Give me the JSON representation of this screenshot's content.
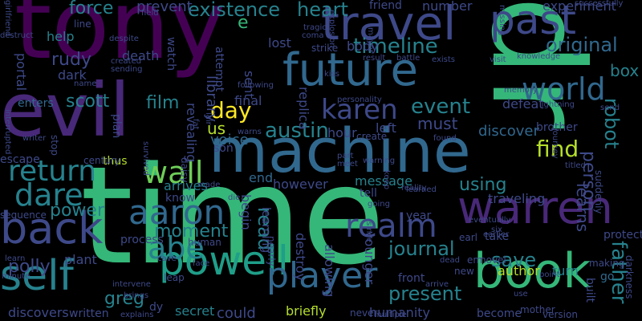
{
  "background": "#000000",
  "palette": {
    "dark_purple": "#440154",
    "purple": "#482878",
    "indigo": "#3e4989",
    "blue": "#31688e",
    "teal": "#26828e",
    "cyan_green": "#1f9e89",
    "green": "#35b779",
    "light_green": "#6ece58",
    "lime": "#b5de2b",
    "yellow": "#fde725"
  },
  "words": [
    {
      "id": "time",
      "text": "time",
      "color": "#35b779"
    },
    {
      "id": "tony",
      "text": "tony",
      "color": "#440154"
    },
    {
      "id": "dr",
      "text": "dr",
      "color": "#35b779"
    },
    {
      "id": "machine",
      "text": "machine",
      "color": "#31688e"
    },
    {
      "id": "evil",
      "text": "evil",
      "color": "#482878"
    },
    {
      "id": "future",
      "text": "future",
      "color": "#31688e"
    },
    {
      "id": "travel",
      "text": "travel",
      "color": "#3e4989"
    },
    {
      "id": "book",
      "text": "book",
      "color": "#35b779"
    },
    {
      "id": "warren",
      "text": "warren",
      "color": "#482878"
    },
    {
      "id": "self",
      "text": "self",
      "color": "#26828e"
    },
    {
      "id": "back",
      "text": "back",
      "color": "#3e4989"
    },
    {
      "id": "past",
      "text": "past",
      "color": "#3e4989"
    },
    {
      "id": "powell",
      "text": "powell",
      "color": "#1f9e89"
    },
    {
      "id": "player",
      "text": "player",
      "color": "#31688e"
    },
    {
      "id": "aaron",
      "text": "aaron",
      "color": "#31688e"
    },
    {
      "id": "world",
      "text": "world",
      "color": "#31688e"
    },
    {
      "id": "realm",
      "text": "realm",
      "color": "#3e4989"
    },
    {
      "id": "abe",
      "text": "abe",
      "color": "#26828e"
    },
    {
      "id": "return",
      "text": "return",
      "color": "#26828e"
    },
    {
      "id": "wall",
      "text": "wall",
      "color": "#6ece58"
    },
    {
      "id": "karen",
      "text": "karen",
      "color": "#3e4989"
    },
    {
      "id": "dare",
      "text": "dare",
      "color": "#26828e"
    },
    {
      "id": "timeline",
      "text": "timeline",
      "color": "#26828e"
    },
    {
      "id": "austin",
      "text": "austin",
      "color": "#26828e"
    },
    {
      "id": "original",
      "text": "original",
      "color": "#31688e"
    },
    {
      "id": "existence",
      "text": "existence",
      "color": "#26828e"
    },
    {
      "id": "day",
      "text": "day",
      "color": "#fde725"
    },
    {
      "id": "find",
      "text": "find",
      "color": "#b5de2b"
    },
    {
      "id": "event",
      "text": "event",
      "color": "#26828e"
    },
    {
      "id": "heart",
      "text": "heart",
      "color": "#26828e"
    },
    {
      "id": "force",
      "text": "force",
      "color": "#26828e"
    },
    {
      "id": "read",
      "text": "read",
      "color": "#26828e"
    },
    {
      "id": "father",
      "text": "father",
      "color": "#26828e"
    },
    {
      "id": "robot",
      "text": "robot",
      "color": "#26828e"
    },
    {
      "id": "person",
      "text": "person",
      "color": "#3e4989"
    },
    {
      "id": "journal",
      "text": "journal",
      "color": "#26828e"
    },
    {
      "id": "present",
      "text": "present",
      "color": "#26828e"
    },
    {
      "id": "save",
      "text": "save",
      "color": "#26828e"
    },
    {
      "id": "greg",
      "text": "greg",
      "color": "#26828e"
    },
    {
      "id": "polly",
      "text": "polly",
      "color": "#3e4989"
    },
    {
      "id": "rudy",
      "text": "rudy",
      "color": "#3e4989"
    },
    {
      "id": "scott",
      "text": "scott",
      "color": "#26828e"
    },
    {
      "id": "film",
      "text": "film",
      "color": "#26828e"
    },
    {
      "id": "moment",
      "text": "moment",
      "color": "#26828e"
    },
    {
      "id": "power",
      "text": "power",
      "color": "#26828e"
    },
    {
      "id": "using",
      "text": "using",
      "color": "#26828e"
    },
    {
      "id": "learns",
      "text": "learns",
      "color": "#3e4989"
    },
    {
      "id": "must",
      "text": "must",
      "color": "#3e4989"
    },
    {
      "id": "box",
      "text": "box",
      "color": "#26828e"
    },
    {
      "id": "library",
      "text": "library",
      "color": "#3e4989"
    },
    {
      "id": "us",
      "text": "us",
      "color": "#b5de2b"
    },
    {
      "id": "voice",
      "text": "voice",
      "color": "#31688e"
    },
    {
      "id": "wall_e",
      "text": "e",
      "color": "#35b779"
    },
    {
      "id": "prevent",
      "text": "prevent",
      "color": "#3e4989"
    },
    {
      "id": "lost",
      "text": "lost",
      "color": "#3e4989"
    },
    {
      "id": "number",
      "text": "number",
      "color": "#3e4989"
    },
    {
      "id": "experiment",
      "text": "experiment",
      "color": "#3e4989"
    },
    {
      "id": "friend",
      "text": "friend",
      "color": "#3e4989"
    },
    {
      "id": "help",
      "text": "help",
      "color": "#26828e"
    },
    {
      "id": "portal",
      "text": "portal",
      "color": "#3e4989"
    },
    {
      "id": "dark",
      "text": "dark",
      "color": "#3e4989"
    },
    {
      "id": "death",
      "text": "death",
      "color": "#3e4989"
    },
    {
      "id": "sent",
      "text": "sent",
      "color": "#3e4989"
    },
    {
      "id": "final",
      "text": "final",
      "color": "#3e4989"
    },
    {
      "id": "body",
      "text": "body",
      "color": "#3e4989"
    },
    {
      "id": "replica",
      "text": "replica",
      "color": "#3e4989"
    },
    {
      "id": "revealing",
      "text": "revealing",
      "color": "#3e4989"
    },
    {
      "id": "attempt",
      "text": "attempt",
      "color": "#3e4989"
    },
    {
      "id": "watch",
      "text": "watch",
      "color": "#3e4989"
    },
    {
      "id": "enters",
      "text": "enters",
      "color": "#31688e"
    },
    {
      "id": "hour",
      "text": "hour",
      "color": "#3e4989"
    },
    {
      "id": "left",
      "text": "left",
      "color": "#3e4989"
    },
    {
      "id": "discover",
      "text": "discover",
      "color": "#31688e"
    },
    {
      "id": "defeat",
      "text": "defeat",
      "color": "#3e4989"
    },
    {
      "id": "brother",
      "text": "brother",
      "color": "#3e4989"
    },
    {
      "id": "end",
      "text": "end",
      "color": "#31688e"
    },
    {
      "id": "begin",
      "text": "begin",
      "color": "#3e4989"
    },
    {
      "id": "plan",
      "text": "plan",
      "color": "#3e4989"
    },
    {
      "id": "thus",
      "text": "thus",
      "color": "#b5de2b"
    },
    {
      "id": "arrives",
      "text": "arrives",
      "color": "#26828e"
    },
    {
      "id": "know",
      "text": "know",
      "color": "#3e4989"
    },
    {
      "id": "however",
      "text": "however",
      "color": "#3e4989"
    },
    {
      "id": "message",
      "text": "message",
      "color": "#26828e"
    },
    {
      "id": "tell",
      "text": "tell",
      "color": "#3e4989"
    },
    {
      "id": "traveling",
      "text": "traveling",
      "color": "#3e4989"
    },
    {
      "id": "process",
      "text": "process",
      "color": "#3e4989"
    },
    {
      "id": "plant",
      "text": "plant",
      "color": "#3e4989"
    },
    {
      "id": "secret",
      "text": "secret",
      "color": "#26828e"
    },
    {
      "id": "could",
      "text": "could",
      "color": "#3e4989"
    },
    {
      "id": "briefly",
      "text": "briefly",
      "color": "#b5de2b"
    },
    {
      "id": "discovers",
      "text": "discovers",
      "color": "#3e4989"
    },
    {
      "id": "written",
      "text": "written",
      "color": "#3e4989"
    },
    {
      "id": "younger",
      "text": "younger",
      "color": "#3e4989"
    },
    {
      "id": "destroy",
      "text": "destroy",
      "color": "#3e4989"
    },
    {
      "id": "allowing",
      "text": "allowing",
      "color": "#3e4989"
    },
    {
      "id": "author",
      "text": "author",
      "color": "#b5de2b"
    },
    {
      "id": "humanity",
      "text": "humanity",
      "color": "#3e4989"
    },
    {
      "id": "become",
      "text": "become",
      "color": "#3e4989"
    },
    {
      "id": "front",
      "text": "front",
      "color": "#3e4989"
    },
    {
      "id": "year",
      "text": "year",
      "color": "#3e4989"
    },
    {
      "id": "take",
      "text": "take",
      "color": "#3e4989"
    },
    {
      "id": "turn",
      "text": "turn",
      "color": "#26828e"
    },
    {
      "id": "go",
      "text": "go",
      "color": "#31688e"
    },
    {
      "id": "built",
      "text": "built",
      "color": "#3e4989"
    },
    {
      "id": "darkness",
      "text": "darkness",
      "color": "#3e4989"
    },
    {
      "id": "protect",
      "text": "protect",
      "color": "#3e4989"
    },
    {
      "id": "son",
      "text": "son",
      "color": "#3e4989"
    },
    {
      "id": "learning",
      "text": "learning",
      "color": "#3e4989"
    },
    {
      "id": "dy",
      "text": "dy",
      "color": "#3e4989"
    },
    {
      "id": "leap",
      "text": "leap",
      "color": "#3e4989"
    },
    {
      "id": "human",
      "text": "human",
      "color": "#3e4989"
    },
    {
      "id": "stop",
      "text": "stop",
      "color": "#3e4989"
    },
    {
      "id": "escape",
      "text": "escape",
      "color": "#3e4989"
    },
    {
      "id": "century",
      "text": "century",
      "color": "#3e4989"
    },
    {
      "id": "sequence",
      "text": "sequence",
      "color": "#3e4989"
    },
    {
      "id": "line",
      "text": "line",
      "color": "#3e4989"
    },
    {
      "id": "daisy",
      "text": "daisy",
      "color": "#3e4989"
    },
    {
      "id": "new",
      "text": "new",
      "color": "#3e4989"
    },
    {
      "id": "em",
      "text": "em",
      "color": "#3e4989"
    },
    {
      "id": "novel",
      "text": "novel",
      "color": "#3e4989"
    },
    {
      "id": "earl",
      "text": "earl",
      "color": "#3e4989"
    },
    {
      "id": "never",
      "text": "never",
      "color": "#3e4989"
    },
    {
      "id": "suddenly",
      "text": "suddenly",
      "color": "#3e4989"
    },
    {
      "id": "version",
      "text": "version",
      "color": "#3e4989"
    },
    {
      "id": "mother",
      "text": "mother",
      "color": "#3e4989"
    },
    {
      "id": "making",
      "text": "making",
      "color": "#3e4989"
    },
    {
      "id": "field",
      "text": "field",
      "color": "#3e4989"
    },
    {
      "id": "missing",
      "text": "missing",
      "color": "#3e4989"
    },
    {
      "id": "successfully",
      "text": "successfully",
      "color": "#3e4989"
    },
    {
      "id": "explosion",
      "text": "explosion",
      "color": "#3e4989"
    },
    {
      "id": "strike",
      "text": "strike",
      "color": "#3e4989"
    },
    {
      "id": "result",
      "text": "result",
      "color": "#3e4989"
    },
    {
      "id": "battle",
      "text": "battle",
      "color": "#3e4989"
    },
    {
      "id": "exists",
      "text": "exists",
      "color": "#3e4989"
    },
    {
      "id": "visit",
      "text": "visit",
      "color": "#3e4989"
    },
    {
      "id": "knowledge",
      "text": "knowledge",
      "color": "#3e4989"
    },
    {
      "id": "kiss",
      "text": "kiss",
      "color": "#3e4989"
    },
    {
      "id": "memory",
      "text": "memory",
      "color": "#3e4989"
    },
    {
      "id": "created",
      "text": "created",
      "color": "#3e4989"
    },
    {
      "id": "sending",
      "text": "sending",
      "color": "#3e4989"
    },
    {
      "id": "despite",
      "text": "despite",
      "color": "#3e4989"
    },
    {
      "id": "destruct",
      "text": "destruct",
      "color": "#3e4989"
    },
    {
      "id": "girlfriend",
      "text": "girlfriend",
      "color": "#3e4989"
    },
    {
      "id": "name",
      "text": "name",
      "color": "#3e4989"
    },
    {
      "id": "writer",
      "text": "writer",
      "color": "#3e4989"
    },
    {
      "id": "interrupted",
      "text": "interrupted",
      "color": "#3e4989"
    },
    {
      "id": "following",
      "text": "following",
      "color": "#3e4989"
    },
    {
      "id": "warns",
      "text": "warns",
      "color": "#3e4989"
    },
    {
      "id": "personality",
      "text": "personality",
      "color": "#3e4989"
    },
    {
      "id": "warning",
      "text": "warning",
      "color": "#3e4989"
    },
    {
      "id": "reality",
      "text": "reality",
      "color": "#3e4989"
    },
    {
      "id": "learned",
      "text": "learned",
      "color": "#3e4989"
    },
    {
      "id": "titled",
      "text": "titled",
      "color": "#3e4989"
    },
    {
      "id": "journey",
      "text": "journey",
      "color": "#3e4989"
    },
    {
      "id": "eventually",
      "text": "eventually",
      "color": "#3e4989"
    },
    {
      "id": "earlier",
      "text": "earlier",
      "color": "#3e4989"
    },
    {
      "id": "six",
      "text": "six",
      "color": "#3e4989"
    },
    {
      "id": "die",
      "text": "die",
      "color": "#3e4989"
    },
    {
      "id": "made",
      "text": "made",
      "color": "#3e4989"
    },
    {
      "id": "nearly",
      "text": "nearly",
      "color": "#3e4989"
    },
    {
      "id": "arrive",
      "text": "arrive",
      "color": "#3e4989"
    },
    {
      "id": "point",
      "text": "point",
      "color": "#3e4989"
    },
    {
      "id": "explains",
      "text": "explains",
      "color": "#3e4989"
    },
    {
      "id": "minute",
      "text": "minute",
      "color": "#3e4989"
    },
    {
      "id": "intervene",
      "text": "intervene",
      "color": "#3e4989"
    },
    {
      "id": "brings",
      "text": "brings",
      "color": "#3e4989"
    },
    {
      "id": "multiple",
      "text": "multiple",
      "color": "#3e4989"
    },
    {
      "id": "since",
      "text": "since",
      "color": "#3e4989"
    },
    {
      "id": "going",
      "text": "going",
      "color": "#3e4989"
    },
    {
      "id": "keep",
      "text": "keep",
      "color": "#3e4989"
    },
    {
      "id": "part",
      "text": "part",
      "color": "#3e4989"
    },
    {
      "id": "meet",
      "text": "meet",
      "color": "#3e4989"
    },
    {
      "id": "create",
      "text": "create",
      "color": "#3e4989"
    },
    {
      "id": "tragic",
      "text": "tragic",
      "color": "#3e4989"
    },
    {
      "id": "coma",
      "text": "coma",
      "color": "#3e4989"
    },
    {
      "id": "mayor",
      "text": "mayor",
      "color": "#3e4989"
    },
    {
      "id": "send",
      "text": "send",
      "color": "#3e4989"
    },
    {
      "id": "fat",
      "text": "fat",
      "color": "#3e4989"
    },
    {
      "id": "lair",
      "text": "lair",
      "color": "#3e4989"
    },
    {
      "id": "face",
      "text": "face",
      "color": "#3e4989"
    },
    {
      "id": "cave",
      "text": "cave",
      "color": "#3e4989"
    },
    {
      "id": "learn",
      "text": "learn",
      "color": "#3e4989"
    },
    {
      "id": "use",
      "text": "use",
      "color": "#3e4989"
    },
    {
      "id": "dead",
      "text": "dead",
      "color": "#3e4989"
    },
    {
      "id": "found",
      "text": "found",
      "color": "#3e4989"
    },
    {
      "id": "survived",
      "text": "survived",
      "color": "#3e4989"
    },
    {
      "id": "lightning",
      "text": "lightning",
      "color": "#3e4989"
    }
  ]
}
